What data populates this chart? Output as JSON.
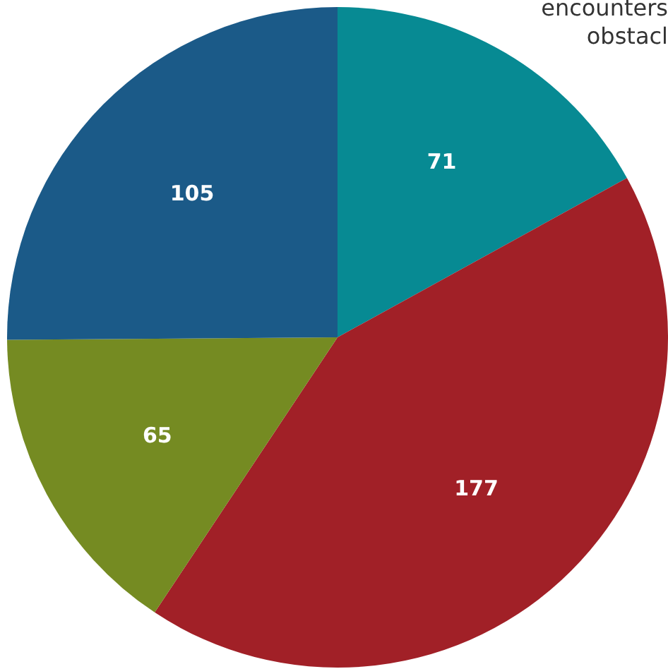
{
  "chart_data": {
    "type": "pie",
    "categories": [
      null,
      null,
      null,
      null
    ],
    "values": [
      71,
      177,
      65,
      105
    ],
    "colors": [
      "#078a93",
      "#a12027",
      "#758b22",
      "#1b5a88"
    ],
    "data_labels": true,
    "annotations": [
      "encounters",
      "obstacl"
    ]
  }
}
